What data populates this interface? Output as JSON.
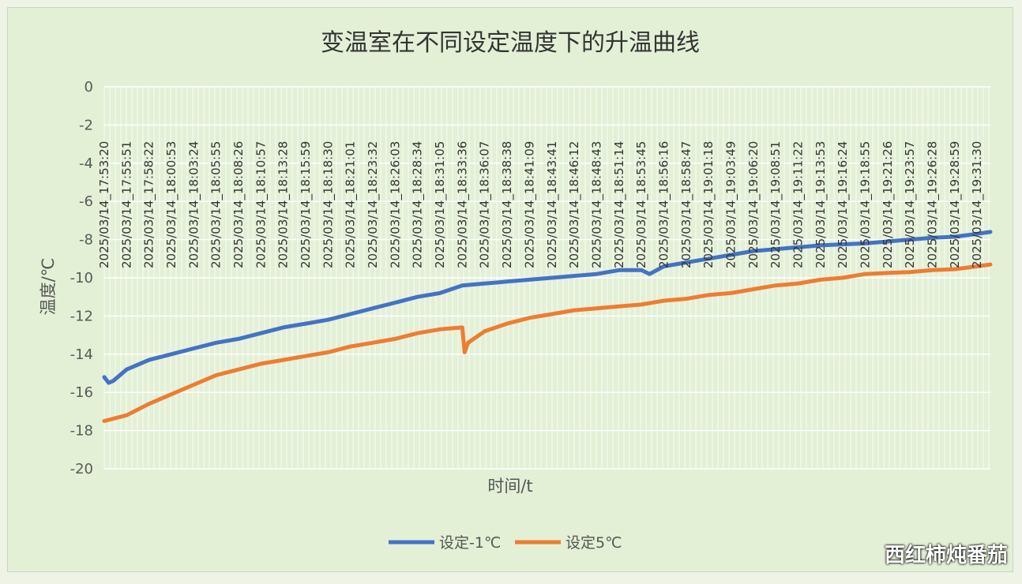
{
  "colors": {
    "series1": "#4472c4",
    "series2": "#ed7d31",
    "grid": "#ffffff",
    "plot_bg": "#e3f0d6"
  },
  "watermark": "西红柿炖番茄",
  "chart_data": {
    "type": "line",
    "title": "变温室在不同设定温度下的升温曲线",
    "xlabel": "时间/t",
    "ylabel": "温度/℃",
    "ylim": [
      -20,
      0
    ],
    "yticks": [
      0,
      -2,
      -4,
      -6,
      -8,
      -10,
      -12,
      -14,
      -16,
      -18,
      -20
    ],
    "xlim": [
      "2025/03/14_17:53:20",
      "2025/03/14_19:33:00"
    ],
    "xtick_labels": [
      "2025/03/14_17:53:20",
      "2025/03/14_17:55:51",
      "2025/03/14_17:58:22",
      "2025/03/14_18:00:53",
      "2025/03/14_18:03:24",
      "2025/03/14_18:05:55",
      "2025/03/14_18:08:26",
      "2025/03/14_18:10:57",
      "2025/03/14_18:13:28",
      "2025/03/14_18:15:59",
      "2025/03/14_18:18:30",
      "2025/03/14_18:21:01",
      "2025/03/14_18:23:32",
      "2025/03/14_18:26:03",
      "2025/03/14_18:28:34",
      "2025/03/14_18:31:05",
      "2025/03/14_18:33:36",
      "2025/03/14_18:36:07",
      "2025/03/14_18:38:38",
      "2025/03/14_18:41:09",
      "2025/03/14_18:43:41",
      "2025/03/14_18:46:12",
      "2025/03/14_18:48:43",
      "2025/03/14_18:51:14",
      "2025/03/14_18:53:45",
      "2025/03/14_18:56:16",
      "2025/03/14_18:58:47",
      "2025/03/14_19:01:18",
      "2025/03/14_19:03:49",
      "2025/03/14_19:06:20",
      "2025/03/14_19:08:51",
      "2025/03/14_19:11:22",
      "2025/03/14_19:13:53",
      "2025/03/14_19:16:24",
      "2025/03/14_19:18:55",
      "2025/03/14_19:21:26",
      "2025/03/14_19:23:57",
      "2025/03/14_19:26:28",
      "2025/03/14_19:28:59",
      "2025/03/14_19:31:30"
    ],
    "grid": true,
    "legend": "bottom",
    "series": [
      {
        "name": "设定-1℃",
        "x": [
          "2025/03/14_17:53:20",
          "2025/03/14_17:53:50",
          "2025/03/14_17:54:20",
          "2025/03/14_17:55:51",
          "2025/03/14_17:58:22",
          "2025/03/14_18:00:53",
          "2025/03/14_18:03:24",
          "2025/03/14_18:05:55",
          "2025/03/14_18:08:26",
          "2025/03/14_18:10:57",
          "2025/03/14_18:13:28",
          "2025/03/14_18:15:59",
          "2025/03/14_18:18:30",
          "2025/03/14_18:21:01",
          "2025/03/14_18:23:32",
          "2025/03/14_18:26:03",
          "2025/03/14_18:28:34",
          "2025/03/14_18:31:05",
          "2025/03/14_18:33:36",
          "2025/03/14_18:36:07",
          "2025/03/14_18:38:38",
          "2025/03/14_18:41:09",
          "2025/03/14_18:43:41",
          "2025/03/14_18:46:12",
          "2025/03/14_18:48:43",
          "2025/03/14_18:51:14",
          "2025/03/14_18:53:45",
          "2025/03/14_18:54:40",
          "2025/03/14_18:56:16",
          "2025/03/14_18:58:47",
          "2025/03/14_19:01:18",
          "2025/03/14_19:03:49",
          "2025/03/14_19:06:20",
          "2025/03/14_19:08:51",
          "2025/03/14_19:11:22",
          "2025/03/14_19:13:53",
          "2025/03/14_19:16:24",
          "2025/03/14_19:18:55",
          "2025/03/14_19:21:26",
          "2025/03/14_19:23:57",
          "2025/03/14_19:26:28",
          "2025/03/14_19:28:59",
          "2025/03/14_19:31:30",
          "2025/03/14_19:33:00"
        ],
        "values": [
          -15.2,
          -15.5,
          -15.4,
          -14.8,
          -14.3,
          -14.0,
          -13.7,
          -13.4,
          -13.2,
          -12.9,
          -12.6,
          -12.4,
          -12.2,
          -11.9,
          -11.6,
          -11.3,
          -11.0,
          -10.8,
          -10.4,
          -10.3,
          -10.2,
          -10.1,
          -10.0,
          -9.9,
          -9.8,
          -9.6,
          -9.6,
          -9.8,
          -9.4,
          -9.2,
          -9.0,
          -8.8,
          -8.6,
          -8.5,
          -8.4,
          -8.3,
          -8.25,
          -8.2,
          -8.1,
          -8.0,
          -7.9,
          -7.85,
          -7.7,
          -7.6
        ]
      },
      {
        "name": "设定5℃",
        "x": [
          "2025/03/14_17:53:20",
          "2025/03/14_17:55:51",
          "2025/03/14_17:58:22",
          "2025/03/14_18:00:53",
          "2025/03/14_18:03:24",
          "2025/03/14_18:05:55",
          "2025/03/14_18:08:26",
          "2025/03/14_18:10:57",
          "2025/03/14_18:13:28",
          "2025/03/14_18:15:59",
          "2025/03/14_18:18:30",
          "2025/03/14_18:21:01",
          "2025/03/14_18:23:32",
          "2025/03/14_18:26:03",
          "2025/03/14_18:28:34",
          "2025/03/14_18:31:05",
          "2025/03/14_18:33:36",
          "2025/03/14_18:33:52",
          "2025/03/14_18:34:15",
          "2025/03/14_18:36:07",
          "2025/03/14_18:38:38",
          "2025/03/14_18:41:09",
          "2025/03/14_18:43:41",
          "2025/03/14_18:46:12",
          "2025/03/14_18:48:43",
          "2025/03/14_18:51:14",
          "2025/03/14_18:53:45",
          "2025/03/14_18:56:16",
          "2025/03/14_18:58:47",
          "2025/03/14_19:01:18",
          "2025/03/14_19:03:49",
          "2025/03/14_19:06:20",
          "2025/03/14_19:08:51",
          "2025/03/14_19:11:22",
          "2025/03/14_19:13:53",
          "2025/03/14_19:16:24",
          "2025/03/14_19:18:55",
          "2025/03/14_19:21:26",
          "2025/03/14_19:23:57",
          "2025/03/14_19:26:28",
          "2025/03/14_19:28:59",
          "2025/03/14_19:31:30",
          "2025/03/14_19:33:00"
        ],
        "values": [
          -17.5,
          -17.2,
          -16.6,
          -16.1,
          -15.6,
          -15.1,
          -14.8,
          -14.5,
          -14.3,
          -14.1,
          -13.9,
          -13.6,
          -13.4,
          -13.2,
          -12.9,
          -12.7,
          -12.6,
          -13.9,
          -13.4,
          -12.8,
          -12.4,
          -12.1,
          -11.9,
          -11.7,
          -11.6,
          -11.5,
          -11.4,
          -11.2,
          -11.1,
          -10.9,
          -10.8,
          -10.6,
          -10.4,
          -10.3,
          -10.1,
          -10.0,
          -9.8,
          -9.75,
          -9.7,
          -9.6,
          -9.55,
          -9.4,
          -9.3
        ]
      }
    ]
  }
}
